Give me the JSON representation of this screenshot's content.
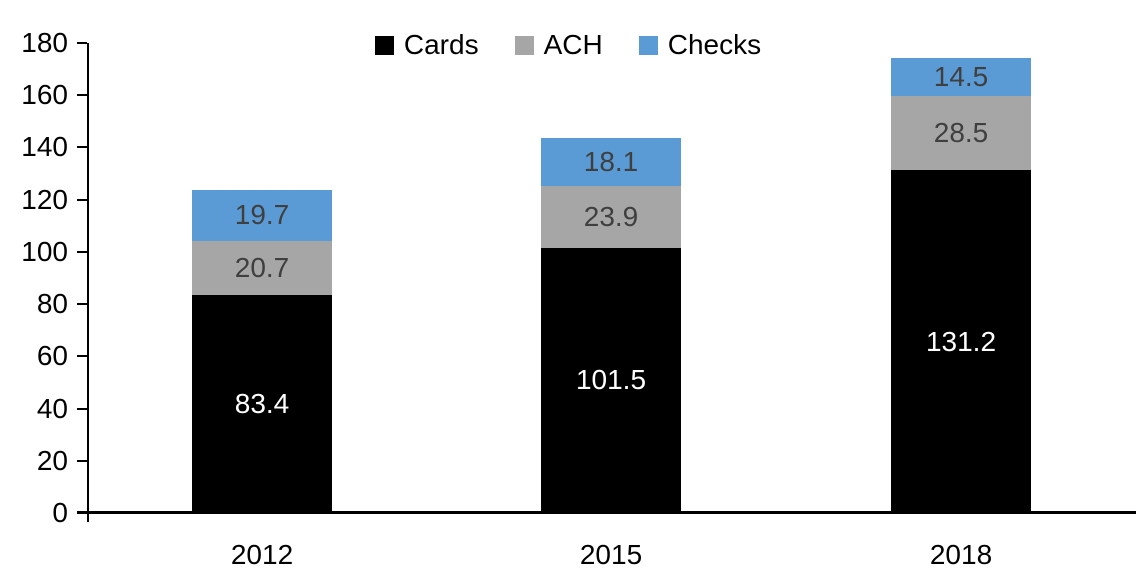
{
  "chart_data": {
    "type": "bar",
    "stacked": true,
    "title": "",
    "xlabel": "",
    "ylabel": "",
    "categories": [
      "2012",
      "2015",
      "2018"
    ],
    "series": [
      {
        "name": "Cards",
        "color": "#000000",
        "label_color": "#FFFFFF",
        "values": [
          83.4,
          101.5,
          131.2
        ]
      },
      {
        "name": "ACH",
        "color": "#A6A6A6",
        "label_color": "#3F3F3F",
        "values": [
          20.7,
          23.9,
          28.5
        ]
      },
      {
        "name": "Checks",
        "color": "#5B9BD5",
        "label_color": "#3F3F3F",
        "values": [
          19.7,
          18.1,
          14.5
        ]
      }
    ],
    "totals": [
      123.8,
      143.5,
      174.2
    ],
    "ylim": [
      0,
      180
    ],
    "yticks": [
      0,
      20,
      40,
      60,
      80,
      100,
      120,
      140,
      160,
      180
    ],
    "grid": false,
    "legend_position": "top-center",
    "legend_labels": [
      "Cards",
      "ACH",
      "Checks"
    ]
  },
  "colors": {
    "background": "#FFFFFF",
    "axis": "#000000"
  }
}
